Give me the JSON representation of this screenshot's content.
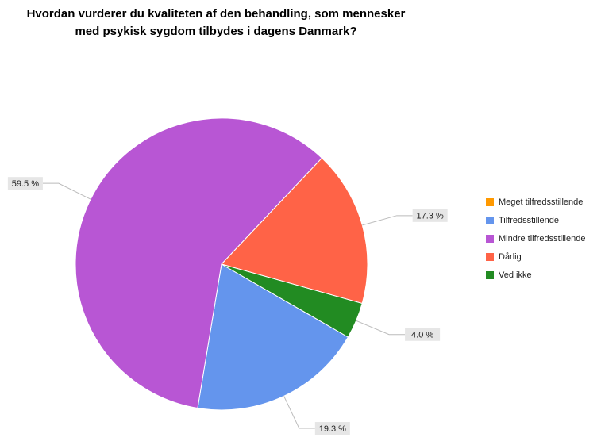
{
  "chart_data": {
    "type": "pie",
    "title": [
      "Hvordan vurderer du kvaliteten af den behandling, som mennesker",
      "med psykisk sygdom tilbydes i dagens Danmark?"
    ],
    "categories": [
      "Meget tilfredsstillende",
      "Tilfredsstillende",
      "Mindre tilfredsstillende",
      "Dårlig",
      "Ved ikke"
    ],
    "values": [
      0,
      19.3,
      59.5,
      17.3,
      4.0
    ],
    "value_labels": [
      null,
      "19.3 %",
      "59.5 %",
      "17.3 %",
      "4.0 %"
    ],
    "colors": [
      "#ff9900",
      "#6495ed",
      "#b856d4",
      "#ff6347",
      "#228b22"
    ],
    "legend": "right"
  }
}
